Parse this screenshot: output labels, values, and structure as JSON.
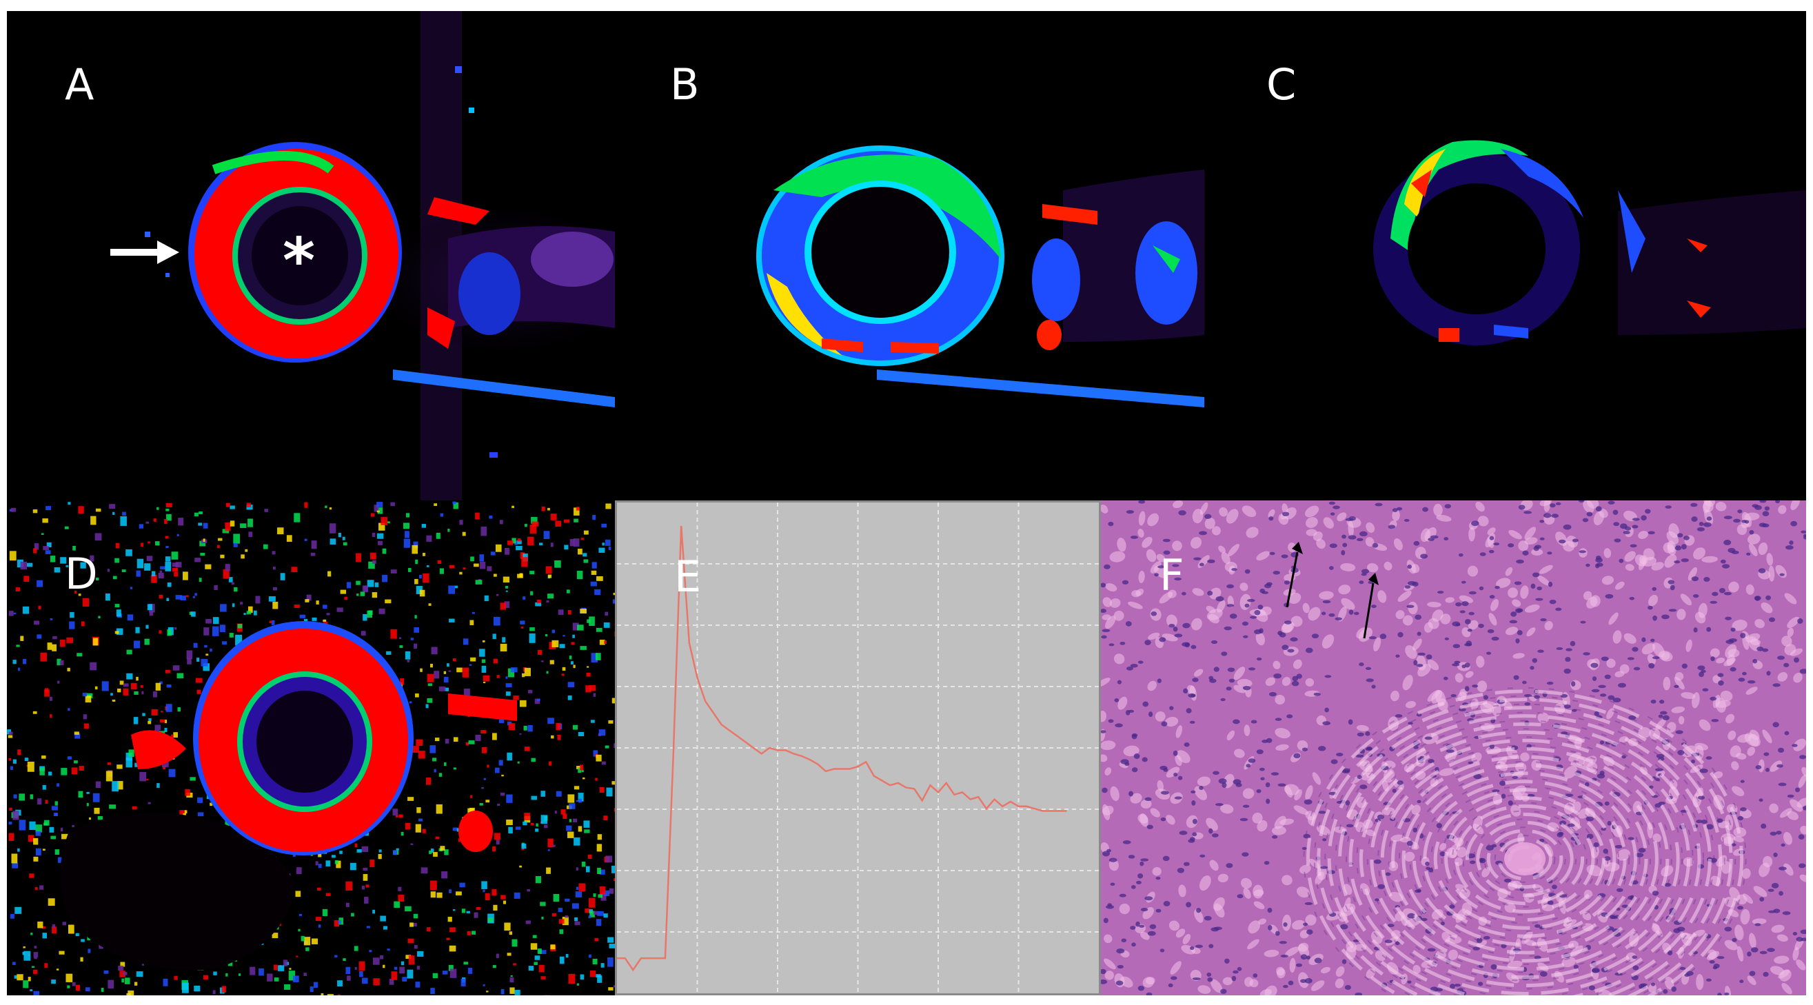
{
  "panels": {
    "a": {
      "label": "A",
      "marker_arrow": "→",
      "marker_star": "*"
    },
    "b": {
      "label": "B"
    },
    "c": {
      "label": "C"
    },
    "d": {
      "label": "D"
    },
    "e": {
      "label": "E"
    },
    "f": {
      "label": "F"
    }
  },
  "colors": {
    "background": "#000000",
    "map_red": "#ff0000",
    "map_green": "#00e040",
    "map_blue": "#1030ff",
    "map_purple": "#3a0a6a",
    "curve": "#e8776a",
    "plot_bg": "#c0c0c0",
    "grid": "#e6e6e6",
    "histology_bg": "#b56ab8",
    "nuclei": "#4a2a8a"
  },
  "chart_data": {
    "type": "line",
    "title": "",
    "xlabel": "",
    "ylabel": "",
    "grid": true,
    "xlim": [
      0,
      60
    ],
    "ylim": [
      0,
      420
    ],
    "x": [
      0,
      1,
      2,
      3,
      4,
      5,
      6,
      7,
      8,
      9,
      10,
      11,
      12,
      13,
      14,
      15,
      16,
      17,
      18,
      19,
      20,
      21,
      22,
      23,
      24,
      25,
      26,
      27,
      28,
      29,
      30,
      31,
      32,
      33,
      34,
      35,
      36,
      37,
      38,
      39,
      40,
      41,
      42,
      43,
      44,
      45,
      46,
      47,
      48,
      49,
      50,
      51,
      52,
      53,
      54,
      55,
      56
    ],
    "values": [
      30,
      30,
      20,
      30,
      30,
      30,
      30,
      200,
      400,
      300,
      270,
      250,
      240,
      230,
      225,
      220,
      215,
      210,
      205,
      210,
      208,
      208,
      205,
      203,
      200,
      196,
      190,
      192,
      192,
      192,
      194,
      198,
      186,
      182,
      178,
      180,
      176,
      175,
      165,
      178,
      172,
      180,
      170,
      172,
      166,
      168,
      158,
      166,
      160,
      164,
      160,
      160,
      158,
      156,
      156,
      156,
      156
    ]
  }
}
